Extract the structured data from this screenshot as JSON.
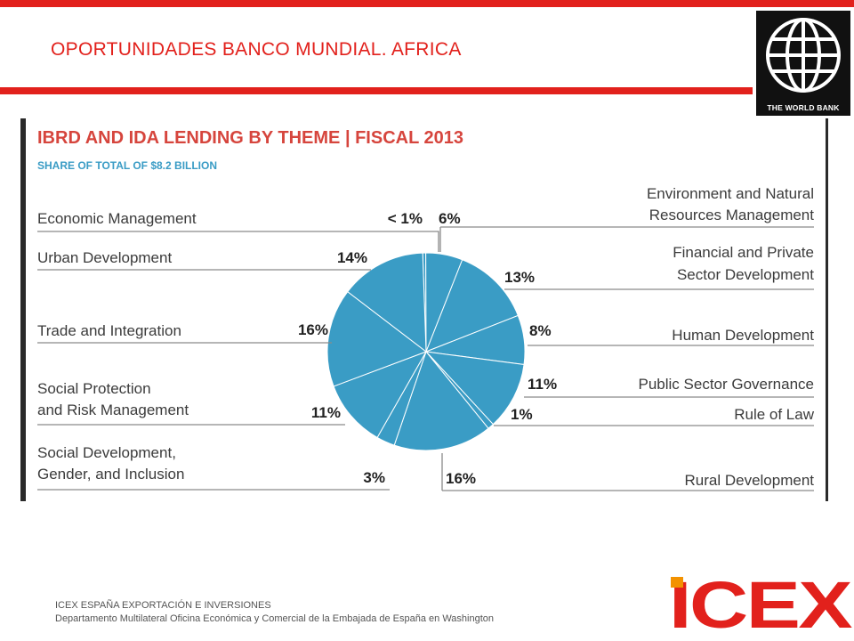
{
  "slide": {
    "title": "OPORTUNIDADES BANCO MUNDIAL. AFRICA",
    "logo_caption": "THE WORLD BANK",
    "footer_line1": "ICEX ESPAÑA EXPORTACIÓN  E INVERSIONES",
    "footer_line2": "Departamento Multilateral Oficina Económica y Comercial de la Embajada de España en Washington",
    "brand": "ICEX"
  },
  "colors": {
    "accent": "#e2211c",
    "pie": "#3a9cc5",
    "chart_title": "#d6453d",
    "subtitle": "#3a9cc5",
    "text": "#3b3b3b",
    "icex_orange": "#f39200",
    "icex_red": "#e2211c"
  },
  "chart_data": {
    "type": "pie",
    "title": "IBRD AND IDA LENDING BY THEME | FISCAL 2013",
    "subtitle": "SHARE OF TOTAL OF $8.2 BILLION",
    "slices": [
      {
        "label": "Economic Management",
        "value": 0.5,
        "display": "< 1%",
        "side": "left"
      },
      {
        "label": "Environment and Natural Resources Management",
        "value": 6,
        "display": "6%",
        "side": "right"
      },
      {
        "label": "Financial and Private Sector Development",
        "value": 13,
        "display": "13%",
        "side": "right"
      },
      {
        "label": "Human Development",
        "value": 8,
        "display": "8%",
        "side": "right"
      },
      {
        "label": "Public Sector Governance",
        "value": 11,
        "display": "11%",
        "side": "right"
      },
      {
        "label": "Rule of Law",
        "value": 1,
        "display": "1%",
        "side": "right"
      },
      {
        "label": "Rural Development",
        "value": 16,
        "display": "16%",
        "side": "right"
      },
      {
        "label": "Social Development, Gender, and Inclusion",
        "value": 3,
        "display": "3%",
        "side": "left"
      },
      {
        "label": "Social Protection and Risk Management",
        "value": 11,
        "display": "11%",
        "side": "left"
      },
      {
        "label": "Trade and Integration",
        "value": 16,
        "display": "16%",
        "side": "left"
      },
      {
        "label": "Urban Development",
        "value": 14,
        "display": "14%",
        "side": "left"
      }
    ]
  }
}
